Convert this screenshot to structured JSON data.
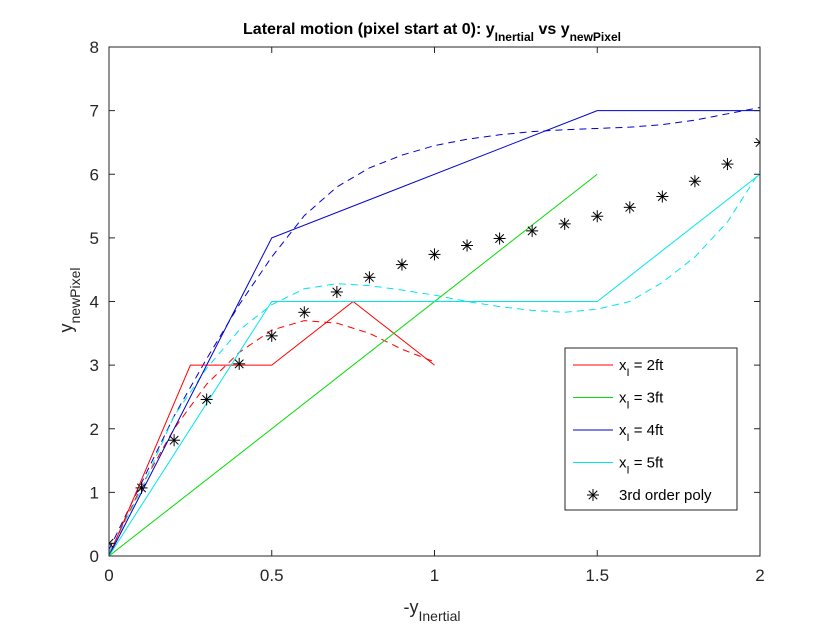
{
  "chart_data": {
    "type": "line",
    "title": {
      "parts": [
        {
          "text": "Lateral motion (pixel start at 0): y",
          "sub": false
        },
        {
          "text": "Inertial",
          "sub": true
        },
        {
          "text": " vs y",
          "sub": false
        },
        {
          "text": "newPixel",
          "sub": true
        }
      ]
    },
    "xlabel": {
      "main": "-y",
      "sub": "Inertial"
    },
    "ylabel": {
      "main": "y",
      "sub": "newPixel"
    },
    "xlim": [
      0,
      2
    ],
    "ylim": [
      0,
      8
    ],
    "xticks": [
      0,
      0.5,
      1,
      1.5,
      2
    ],
    "xtick_labels": [
      "0",
      "0.5",
      "1",
      "1.5",
      "2"
    ],
    "yticks": [
      0,
      1,
      2,
      3,
      4,
      5,
      6,
      7,
      8
    ],
    "ytick_labels": [
      "0",
      "1",
      "2",
      "3",
      "4",
      "5",
      "6",
      "7",
      "8"
    ],
    "grid": false,
    "legend_position": "lower-right",
    "series": [
      {
        "name_main": "x",
        "name_sub": "I",
        "name_rest": " = 2ft",
        "color": "#ff0000",
        "style": "solid",
        "x": [
          0,
          0.25,
          0.5,
          0.75,
          1
        ],
        "y": [
          0,
          3,
          3,
          4,
          3
        ]
      },
      {
        "name_main": "x",
        "name_sub": "I",
        "name_rest": " = 3ft",
        "color": "#00dd00",
        "style": "solid",
        "x": [
          0,
          1.5
        ],
        "y": [
          0,
          6
        ]
      },
      {
        "name_main": "x",
        "name_sub": "I",
        "name_rest": " = 4ft",
        "color": "#0000cc",
        "style": "solid",
        "x": [
          0,
          0.1,
          0.5,
          1.5,
          2
        ],
        "y": [
          0,
          1,
          5,
          7,
          7
        ]
      },
      {
        "name_main": "x",
        "name_sub": "I",
        "name_rest": " = 5ft",
        "color": "#00e5ee",
        "style": "solid",
        "x": [
          0,
          0.5,
          1.5,
          2
        ],
        "y": [
          0,
          4,
          4,
          6
        ]
      },
      {
        "name_main": "3rd order poly",
        "name_sub": "",
        "name_rest": "",
        "color": "#000000",
        "style": "marker",
        "x": [
          0,
          0.1,
          0.2,
          0.3,
          0.4,
          0.5,
          0.6,
          0.7,
          0.8,
          0.9,
          1.0,
          1.1,
          1.2,
          1.3,
          1.4,
          1.5,
          1.6,
          1.7,
          1.8,
          1.9,
          2.0
        ],
        "y": [
          0.2,
          1.07,
          1.82,
          2.46,
          3.02,
          3.46,
          3.83,
          4.15,
          4.38,
          4.58,
          4.74,
          4.88,
          4.99,
          5.11,
          5.22,
          5.34,
          5.48,
          5.65,
          5.89,
          6.16,
          6.5
        ]
      }
    ],
    "fits": [
      {
        "color": "#ff0000",
        "style": "dashed",
        "x": [
          0,
          0.1,
          0.2,
          0.3,
          0.4,
          0.5,
          0.6,
          0.7,
          0.8,
          0.9,
          1.0
        ],
        "y": [
          0.02,
          1.1,
          2.0,
          2.7,
          3.2,
          3.55,
          3.7,
          3.66,
          3.5,
          3.25,
          3.05
        ]
      },
      {
        "color": "#0000cc",
        "style": "dashed",
        "x": [
          0,
          0.1,
          0.2,
          0.3,
          0.4,
          0.5,
          0.6,
          0.7,
          0.8,
          0.9,
          1.0,
          1.1,
          1.2,
          1.3,
          1.4,
          1.5,
          1.6,
          1.7,
          1.8,
          1.9,
          2.0
        ],
        "y": [
          0.1,
          1.15,
          2.2,
          3.1,
          3.95,
          4.7,
          5.35,
          5.8,
          6.1,
          6.3,
          6.45,
          6.55,
          6.62,
          6.67,
          6.7,
          6.72,
          6.74,
          6.78,
          6.85,
          6.95,
          7.05
        ]
      },
      {
        "color": "#00e5ee",
        "style": "dashed",
        "x": [
          0,
          0.1,
          0.2,
          0.3,
          0.4,
          0.5,
          0.6,
          0.7,
          0.8,
          0.9,
          1.0,
          1.1,
          1.2,
          1.3,
          1.4,
          1.5,
          1.6,
          1.7,
          1.8,
          1.9,
          2.0
        ],
        "y": [
          0.05,
          1.05,
          2.2,
          2.95,
          3.55,
          3.95,
          4.2,
          4.28,
          4.25,
          4.18,
          4.1,
          4.0,
          3.92,
          3.86,
          3.83,
          3.88,
          4.0,
          4.3,
          4.7,
          5.25,
          6.05
        ]
      }
    ]
  }
}
